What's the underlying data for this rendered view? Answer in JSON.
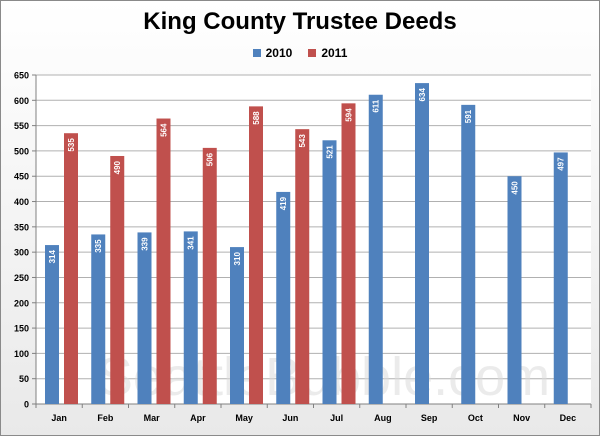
{
  "chart_data": {
    "type": "bar",
    "title": "King County Trustee Deeds",
    "xlabel": "",
    "ylabel": "",
    "categories": [
      "Jan",
      "Feb",
      "Mar",
      "Apr",
      "May",
      "Jun",
      "Jul",
      "Aug",
      "Sep",
      "Oct",
      "Nov",
      "Dec"
    ],
    "series": [
      {
        "name": "2010",
        "color": "#4f81bd",
        "values": [
          314,
          335,
          339,
          341,
          310,
          419,
          521,
          611,
          634,
          591,
          450,
          497
        ]
      },
      {
        "name": "2011",
        "color": "#c0504d",
        "values": [
          535,
          490,
          564,
          506,
          588,
          543,
          594,
          null,
          null,
          null,
          null,
          null
        ]
      }
    ],
    "ylim": [
      0,
      650
    ],
    "yticks": [
      0,
      50,
      100,
      150,
      200,
      250,
      300,
      350,
      400,
      450,
      500,
      550,
      600,
      650
    ],
    "grid": true,
    "legend_position": "top",
    "watermark": "SeattleBubble.com"
  }
}
